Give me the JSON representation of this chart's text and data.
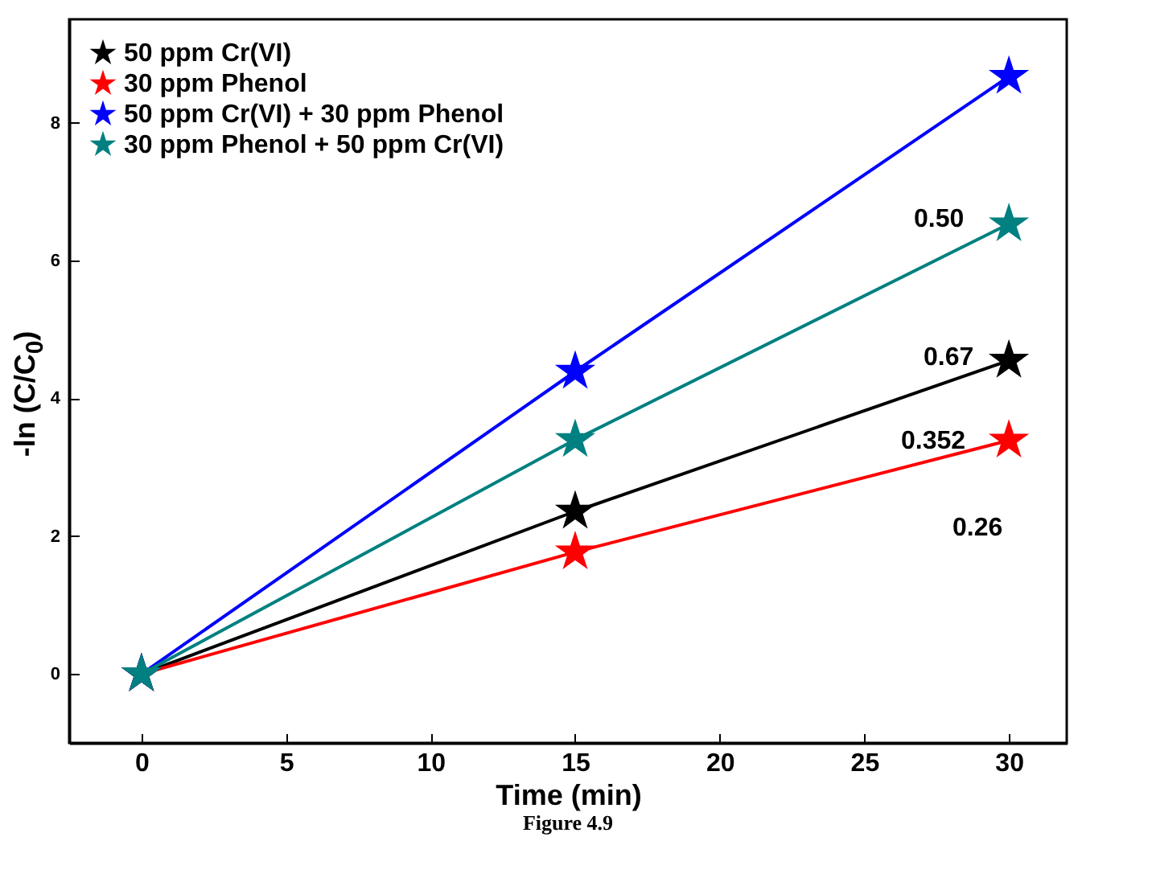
{
  "chart_data": {
    "type": "line",
    "xlabel": "Time (min)",
    "ylabel": "-ln (C/C$_{0}$)",
    "x": [
      0,
      15,
      30
    ],
    "series": [
      {
        "name": "50 ppm Cr(VI)",
        "color": "#000000",
        "values": [
          0,
          2.36,
          4.55
        ]
      },
      {
        "name": "30 ppm Phenol",
        "color": "#ff0000",
        "values": [
          0,
          1.77,
          3.39
        ]
      },
      {
        "name": "50 ppm Cr(VI) + 30 ppm Phenol",
        "color": "#0000ff",
        "values": [
          0,
          4.39,
          8.67
        ]
      },
      {
        "name": "30 ppm Phenol + 50 ppm Cr(VI)",
        "color": "#008080",
        "values": [
          0,
          3.4,
          6.53
        ]
      }
    ],
    "xlim": [
      -2.5,
      32
    ],
    "xticks": [
      0,
      5,
      10,
      15,
      20,
      25,
      30
    ],
    "ylim": [
      -1,
      9.5
    ],
    "yticks": [
      0,
      2,
      4,
      6,
      8
    ],
    "annotations": [
      "0.50",
      "0.67",
      "0.352",
      "0.26",
      "Figure 4.9"
    ],
    "grid": false,
    "legend": "top left",
    "marker": "star",
    "line_style": "solid"
  }
}
